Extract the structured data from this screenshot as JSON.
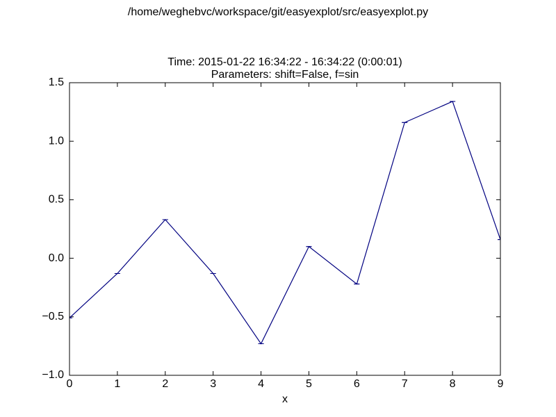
{
  "chart_data": {
    "type": "errorbar-line",
    "suptitle": "/home/weghebvc/workspace/git/easyexplot/src/easyexplot.py",
    "title": [
      "Time: 2015-01-22 16:34:22 - 16:34:22 (0:00:01)",
      "Parameters: shift=False, f=sin"
    ],
    "x_label": "x",
    "x": [
      0,
      1,
      2,
      3,
      4,
      5,
      6,
      7,
      8,
      9
    ],
    "series": [
      {
        "color": "#000080",
        "values": [
          -0.51,
          -0.13,
          0.33,
          -0.13,
          -0.73,
          0.1,
          -0.22,
          1.16,
          1.34,
          0.16
        ],
        "errors": [
          0,
          0,
          0,
          0,
          0,
          0,
          0,
          0,
          0,
          0
        ]
      }
    ],
    "xlim": [
      0,
      9
    ],
    "ylim": [
      -1.0,
      1.5
    ],
    "xticks": [
      0,
      1,
      2,
      3,
      4,
      5,
      6,
      7,
      8,
      9
    ],
    "yticks": [
      {
        "value": -1.0,
        "label": "−1.0"
      },
      {
        "value": -0.5,
        "label": "−0.5"
      },
      {
        "value": 0.0,
        "label": "0.0"
      },
      0.5,
      {
        "value": 1.0,
        "label": "1.0"
      },
      1.5
    ],
    "grid": false
  }
}
